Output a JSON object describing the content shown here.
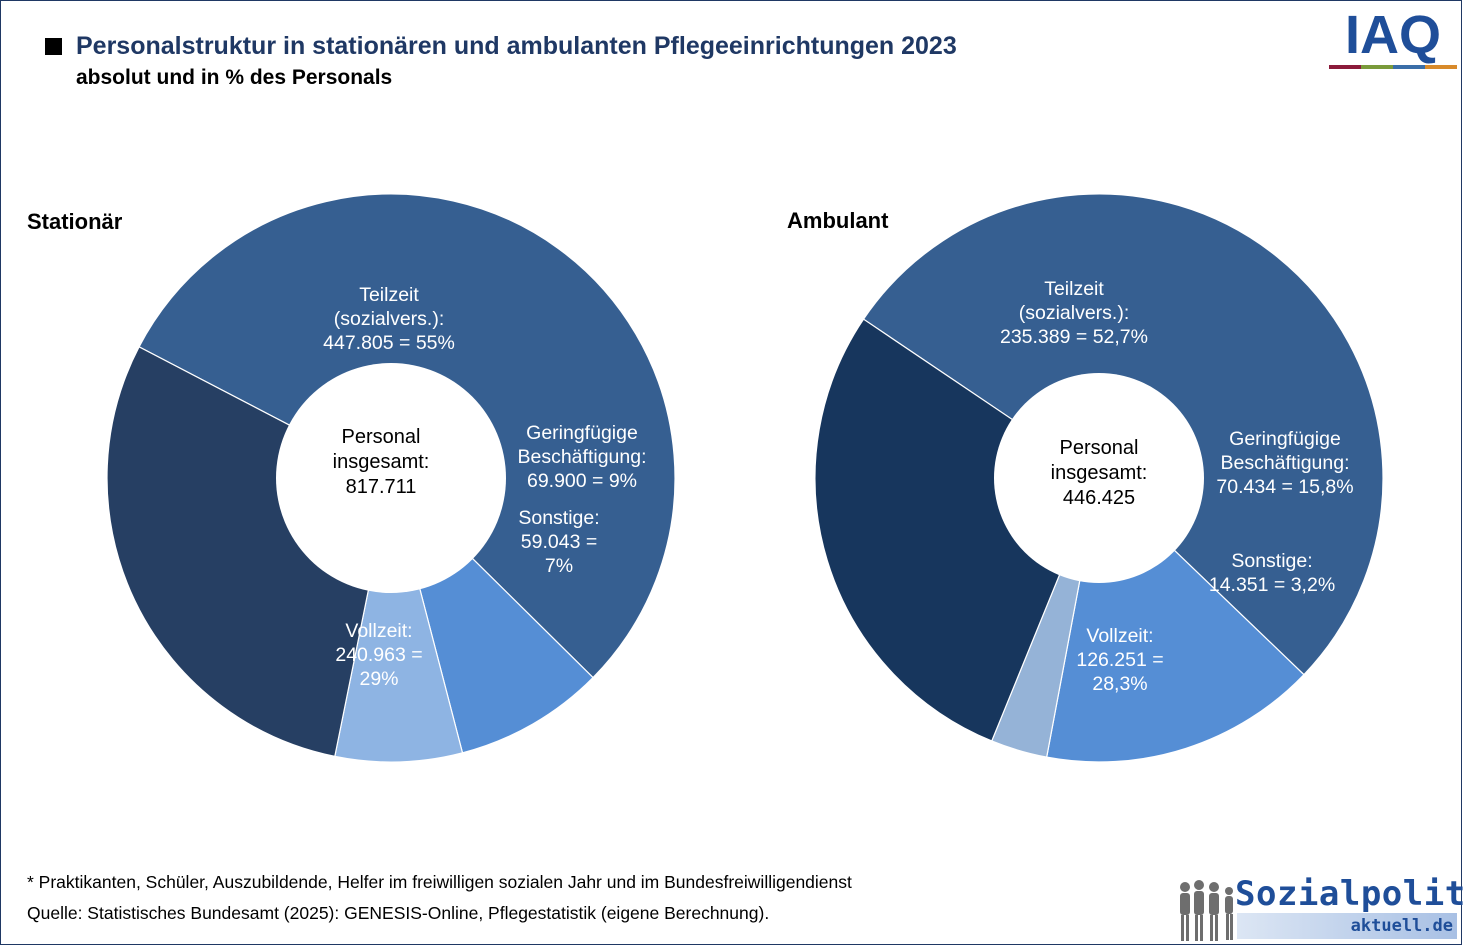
{
  "header": {
    "title": "Personalstruktur in stationären und ambulanten Pflegeeinrichtungen 2023",
    "subtitle": "absolut und in % des Personals",
    "logo_text": "IAQ"
  },
  "colors": {
    "teilzeit": "#365f91",
    "geringfuegig": "#558ed5",
    "sonstige_left": "#8eb4e3",
    "sonstige_right": "#95b3d7",
    "vollzeit_left": "#263f63",
    "vollzeit_right": "#17365d",
    "title": "#1f3864"
  },
  "chart_data": [
    {
      "type": "pie",
      "title": "Stationär",
      "center_label": [
        "Personal",
        "insgesamt:",
        "817.711"
      ],
      "total": 817711,
      "slices": [
        {
          "name": "Teilzeit (sozialvers.)",
          "value": 447805,
          "percent": 55,
          "label_lines": [
            "Teilzeit",
            "(sozialvers.):",
            "447.805  = 55%"
          ]
        },
        {
          "name": "Geringfügige Beschäftigung",
          "value": 69900,
          "percent": 9,
          "label_lines": [
            "Geringfügige",
            "Beschäftigung:",
            "69.900  = 9%"
          ]
        },
        {
          "name": "Sonstige",
          "value": 59043,
          "percent": 7,
          "label_lines": [
            "Sonstige:",
            "59.043  =",
            "7%"
          ]
        },
        {
          "name": "Vollzeit",
          "value": 240963,
          "percent": 29,
          "label_lines": [
            "Vollzeit:",
            "240.963  =",
            "29%"
          ]
        }
      ]
    },
    {
      "type": "pie",
      "title": "Ambulant",
      "center_label": [
        "Personal",
        "insgesamt:",
        "446.425"
      ],
      "total": 446425,
      "slices": [
        {
          "name": "Teilzeit (sozialvers.)",
          "value": 235389,
          "percent": 52.7,
          "label_lines": [
            "Teilzeit",
            "(sozialvers.):",
            "235.389  = 52,7%"
          ]
        },
        {
          "name": "Geringfügige Beschäftigung",
          "value": 70434,
          "percent": 15.8,
          "label_lines": [
            "Geringfügige",
            "Beschäftigung:",
            "70.434  = 15,8%"
          ]
        },
        {
          "name": "Sonstige",
          "value": 14351,
          "percent": 3.2,
          "label_lines": [
            "Sonstige:",
            "14.351  =  3,2%"
          ]
        },
        {
          "name": "Vollzeit",
          "value": 126251,
          "percent": 28.3,
          "label_lines": [
            "Vollzeit:",
            "126.251  =",
            "28,3%"
          ]
        }
      ]
    }
  ],
  "footer": {
    "footnote": "* Praktikanten,  Schüler,  Auszubildende,  Helfer im freiwilligen  sozialen  Jahr und  im Bundesfreiwilligendienst",
    "source": "Quelle: Statistisches Bundesamt  (2025): GENESIS-Online,  Pflegestatistik (eigene Berechnung).",
    "brand_main": "Sozialpolitik-",
    "brand_sub": "aktuell.de"
  }
}
